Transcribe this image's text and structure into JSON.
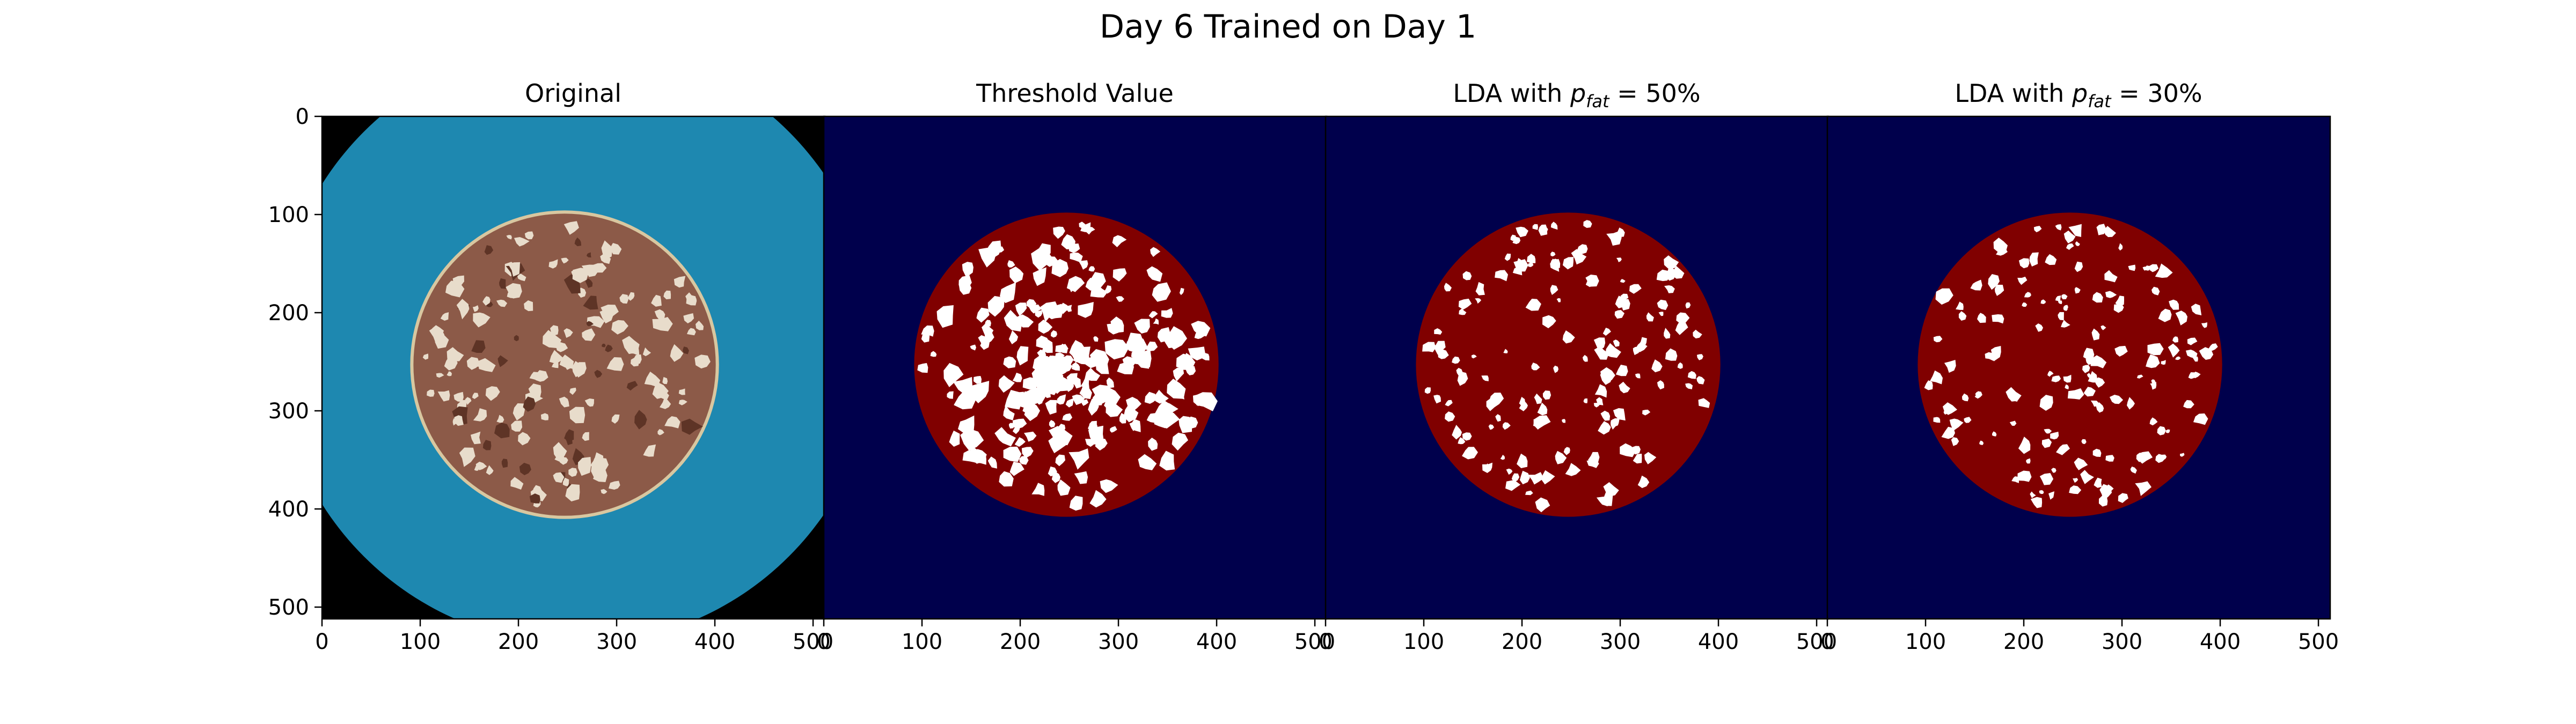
{
  "figure": {
    "title": "Day 6 Trained on Day 1"
  },
  "colors": {
    "background_image": "#000000",
    "petri_dish": "#1e88b0",
    "salami": "#8c5a48",
    "salami_fat": "#e8dccb",
    "mask_background": "#00004c",
    "mask_meat": "#800000",
    "mask_fat": "#ffffff"
  },
  "chart_data": [
    {
      "type": "image",
      "panel": "original",
      "title": "Original",
      "xlim": [
        0,
        512
      ],
      "ylim": [
        512,
        0
      ],
      "xticks": [
        "0",
        "100",
        "200",
        "300",
        "400",
        "500"
      ],
      "yticks": [
        "0",
        "100",
        "200",
        "300",
        "400",
        "500"
      ],
      "image_content": "salami slice on blue petri dish",
      "slice_center": [
        247,
        253
      ],
      "slice_radius": 155
    },
    {
      "type": "image",
      "panel": "threshold",
      "title": "Threshold Value",
      "xlim": [
        0,
        512
      ],
      "ylim": [
        512,
        0
      ],
      "xticks": [
        "0",
        "100",
        "200",
        "300",
        "400",
        "500"
      ],
      "yticks": [],
      "image_content": "segmentation mask",
      "slice_center": [
        247,
        253
      ],
      "slice_radius": 155
    },
    {
      "type": "image",
      "panel": "lda50",
      "title_prefix": "LDA with ",
      "title_symbol": "p",
      "title_subscript": "fat",
      "title_suffix": " = 50%",
      "xlim": [
        0,
        512
      ],
      "ylim": [
        512,
        0
      ],
      "xticks": [
        "0",
        "100",
        "200",
        "300",
        "400",
        "500"
      ],
      "yticks": [],
      "image_content": "segmentation mask",
      "slice_center": [
        247,
        253
      ],
      "slice_radius": 155
    },
    {
      "type": "image",
      "panel": "lda30",
      "title_prefix": "LDA with ",
      "title_symbol": "p",
      "title_subscript": "fat",
      "title_suffix": " = 30%",
      "xlim": [
        0,
        512
      ],
      "ylim": [
        512,
        0
      ],
      "xticks": [
        "0",
        "100",
        "200",
        "300",
        "400",
        "500"
      ],
      "yticks": [],
      "image_content": "segmentation mask",
      "slice_center": [
        247,
        253
      ],
      "slice_radius": 155
    }
  ]
}
